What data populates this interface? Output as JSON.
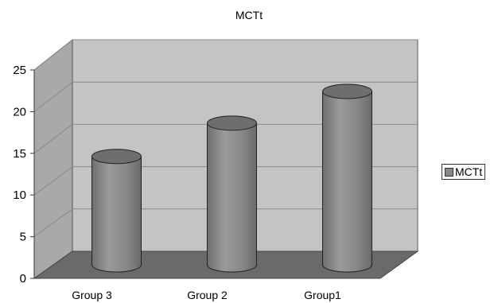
{
  "chart_data": {
    "type": "bar",
    "title": "MCTt",
    "categories": [
      "Group 3",
      "Group 2",
      "Group1"
    ],
    "series": [
      {
        "name": "MCTt",
        "values": [
          13,
          17,
          20.8
        ]
      }
    ],
    "ylim": [
      0,
      25
    ],
    "yticks": [
      "0",
      "5",
      "10",
      "15",
      "20",
      "25"
    ],
    "xlabel": "",
    "ylabel": "",
    "grid": true,
    "legend_position": "right",
    "colors": {
      "bar": "#8a8a8a",
      "bar_top": "#6e6e6e",
      "back_wall": "#c4c4c4",
      "side_wall": "#a9a9a9",
      "floor": "#6a6a6a",
      "gridline": "#8a8a8a"
    }
  }
}
